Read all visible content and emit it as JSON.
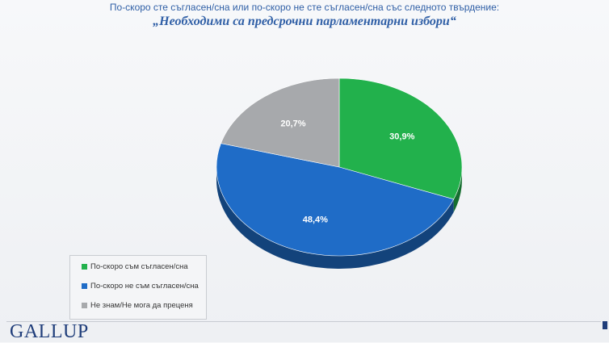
{
  "header": {
    "subtitle": "По-скоро сте съгласен/сна или по-скоро не сте съгласен/сна със следното твърдение:",
    "title": "„Необходими са предсрочни парламентарни избори“"
  },
  "chart_data": {
    "type": "pie",
    "title": "„Необходими са предсрочни парламентарни избори“",
    "subtitle": "По-скоро сте съгласен/сна или по-скоро не сте съгласен/сна със следното твърдение:",
    "slices": [
      {
        "label": "По-скоро съм съгласен/сна",
        "value": 30.9,
        "display": "30,9%",
        "color": "#22b14c"
      },
      {
        "label": "По-скоро не съм съгласен/сна",
        "value": 48.4,
        "display": "48,4%",
        "color": "#1f6cc7"
      },
      {
        "label": "Не знам/Не мога да преценя",
        "value": 20.7,
        "display": "20,7%",
        "color": "#a7a9ac"
      }
    ],
    "legend_position": "bottom-left",
    "style": "3d"
  },
  "legend": {
    "items": [
      {
        "label": "По-скоро съм съгласен/сна",
        "color": "#22b14c"
      },
      {
        "label": "По-скоро не съм съгласен/сна",
        "color": "#1f6cc7"
      },
      {
        "label": "Не знам/Не мога да преценя",
        "color": "#a7a9ac"
      }
    ]
  },
  "brand": {
    "logo_text": "GALLUP"
  }
}
